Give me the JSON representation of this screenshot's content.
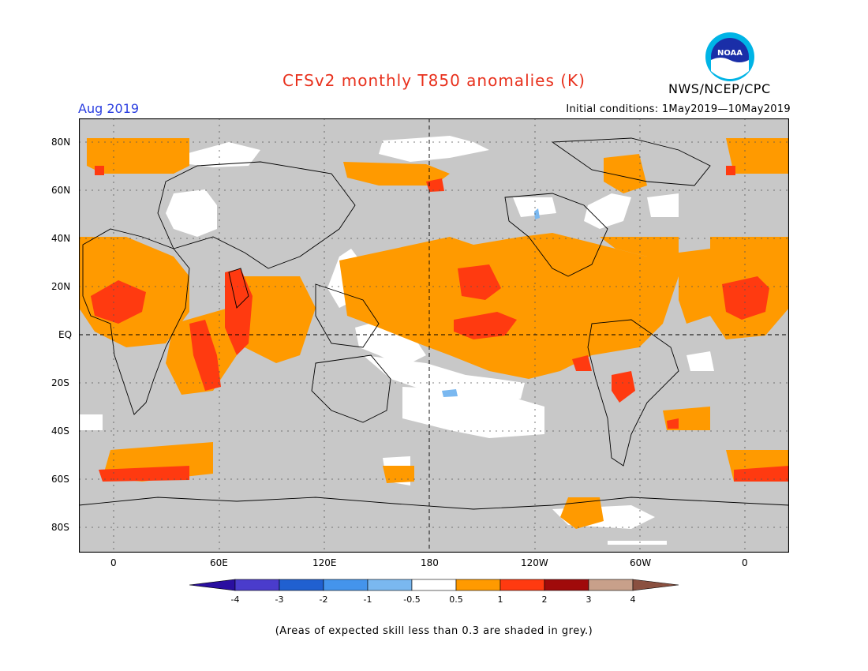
{
  "title": "CFSv2 monthly T850 anomalies (K)",
  "month": "Aug 2019",
  "initial_conditions": "Initial conditions: 1May2019—10May2019",
  "agency": "NWS/NCEP/CPC",
  "logo_text": "NOAA",
  "footnote": "(Areas of expected skill less than 0.3 are shaded in grey.)",
  "lat_labels": [
    "80N",
    "60N",
    "40N",
    "20N",
    "EQ",
    "20S",
    "40S",
    "60S",
    "80S"
  ],
  "lon_labels": [
    "0",
    "60E",
    "120E",
    "180",
    "120W",
    "60W",
    "0"
  ],
  "legend": {
    "ticks": [
      "-4",
      "-3",
      "-2",
      "-1",
      "-0.5",
      "0.5",
      "1",
      "2",
      "3",
      "4"
    ],
    "colors": [
      "#2a0fa0",
      "#4a3ccc",
      "#2060d0",
      "#4494ec",
      "#7ab8f0",
      "#ffffff",
      "#ff9a00",
      "#ff3a10",
      "#a00a0a",
      "#c8a08a",
      "#8a5040"
    ]
  },
  "colors": {
    "grey": "#c8c8c8",
    "white": "#ffffff",
    "orange": "#ff9a00",
    "red": "#ff3a10",
    "darkred": "#a00a0a",
    "lightblue": "#7ab8f0",
    "title_red": "#e8301c",
    "month_blue": "#2a3ee0"
  }
}
